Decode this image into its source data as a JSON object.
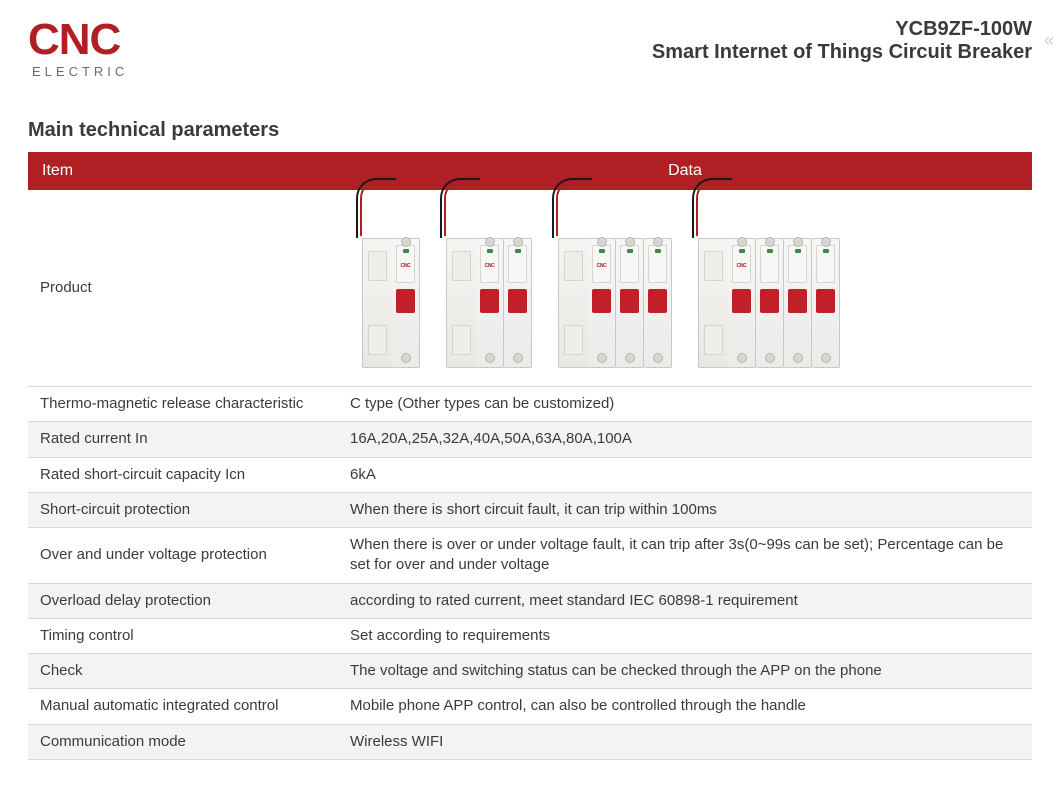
{
  "logo": {
    "main": "CNC",
    "sub": "ELECTRIC"
  },
  "header": {
    "code": "YCB9ZF-100W",
    "name": "Smart Internet of Things Circuit Breaker"
  },
  "nav": {
    "chevron": "«"
  },
  "section_title": "Main technical parameters",
  "table": {
    "head": {
      "item": "Item",
      "data": "Data"
    },
    "product_row_label": "Product",
    "breaker_variants": [
      1,
      2,
      3,
      4
    ],
    "rows": [
      {
        "item": "Thermo-magnetic release characteristic",
        "data": "C type (Other types can be customized)"
      },
      {
        "item": "Rated current In",
        "data": "16A,20A,25A,32A,40A,50A,63A,80A,100A"
      },
      {
        "item": "Rated short-circuit capacity Icn",
        "data": "6kA"
      },
      {
        "item": "Short-circuit protection",
        "data": "When there is short circuit fault, it can trip within 100ms"
      },
      {
        "item": "Over and under voltage protection",
        "data": "When there is over or under voltage fault, it can trip after 3s(0~99s can be set); Percentage can be set for over and under voltage"
      },
      {
        "item": "Overload delay protection",
        "data": "according to rated current, meet standard IEC 60898-1 requirement"
      },
      {
        "item": "Timing control",
        "data": "Set according to requirements"
      },
      {
        "item": "Check",
        "data": "The voltage and switching status can be checked through the APP on the phone"
      },
      {
        "item": "Manual automatic integrated control",
        "data": "Mobile phone APP control, can also be controlled through the handle"
      },
      {
        "item": "Communication mode",
        "data": "Wireless WIFI"
      }
    ]
  },
  "colors": {
    "brand_red": "#b01f24",
    "text_dark": "#3a3a3a",
    "row_alt": "#f3f3f3",
    "border": "#d8d8d8"
  }
}
